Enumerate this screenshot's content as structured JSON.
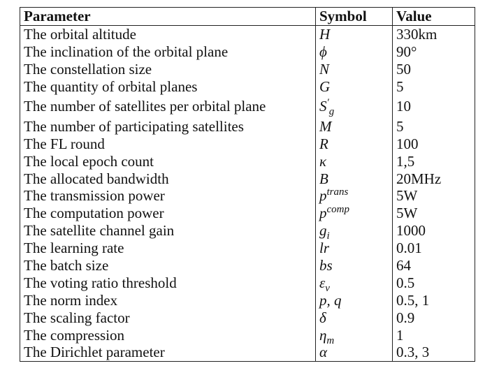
{
  "table": {
    "headers": [
      "Parameter",
      "Symbol",
      "Value"
    ],
    "rows": [
      {
        "parameter": "The orbital altitude",
        "symbol": "H",
        "value": "330km"
      },
      {
        "parameter": "The inclination of the orbital plane",
        "symbol": "ϕ",
        "value": "90°"
      },
      {
        "parameter": "The constellation size",
        "symbol": "N",
        "value": "50"
      },
      {
        "parameter": "The quantity of orbital planes",
        "symbol": "G",
        "value": "5"
      },
      {
        "parameter": "The number of satellites per orbital plane",
        "symbol": "S",
        "symbol_sup": "′",
        "symbol_sub": "g",
        "value": "10"
      },
      {
        "parameter": "The number of participating satellites",
        "symbol": "M",
        "value": "5"
      },
      {
        "parameter": "The FL round",
        "symbol": "R",
        "value": "100"
      },
      {
        "parameter": "The local epoch count",
        "symbol": "κ",
        "value": "1,5"
      },
      {
        "parameter": "The allocated bandwidth",
        "symbol": "B",
        "value": "20MHz"
      },
      {
        "parameter": "The transmission power",
        "symbol": "p",
        "symbol_sup": "trans",
        "value": "5W"
      },
      {
        "parameter": "The computation power",
        "symbol": "p",
        "symbol_sup": "comp",
        "value": "5W"
      },
      {
        "parameter": "The satellite channel gain",
        "symbol": "g",
        "symbol_sub": "i",
        "value": "1000"
      },
      {
        "parameter": "The learning rate",
        "symbol": "lr",
        "value": "0.01"
      },
      {
        "parameter": "The batch size",
        "symbol": "bs",
        "value": "64"
      },
      {
        "parameter": "The voting ratio threshold",
        "symbol": "ε",
        "symbol_sub": "v",
        "value": "0.5"
      },
      {
        "parameter": "The norm index",
        "symbol": "p, q",
        "value": "0.5, 1"
      },
      {
        "parameter": "The scaling factor",
        "symbol": "δ",
        "value": "0.9"
      },
      {
        "parameter": "The compression",
        "symbol": "η",
        "symbol_sub": "m",
        "value": "1"
      },
      {
        "parameter": "The Dirichlet parameter",
        "symbol": "α",
        "value": "0.3, 3"
      }
    ]
  }
}
